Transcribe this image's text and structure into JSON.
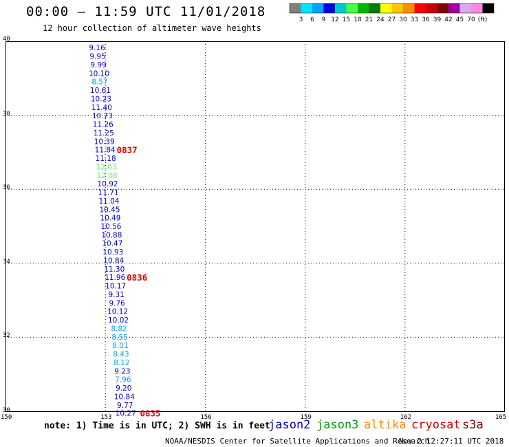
{
  "header": {
    "title": "00:00 – 11:59 UTC 11/01/2018",
    "subtitle": "12 hour collection of altimeter wave heights"
  },
  "colorbar": {
    "colors": [
      "#808080",
      "#00e5ff",
      "#00a0ff",
      "#0000e0",
      "#00c8c8",
      "#44ff44",
      "#00b800",
      "#007a00",
      "#ffff00",
      "#ffc400",
      "#ff8c00",
      "#ff0000",
      "#c80000",
      "#800000",
      "#a000a0",
      "#d8a8f0",
      "#ff88e0",
      "#000000"
    ],
    "labels": [
      "3",
      "6",
      "9",
      "12",
      "15",
      "18",
      "21",
      "24",
      "27",
      "30",
      "33",
      "36",
      "39",
      "42",
      "45",
      "70",
      "(ft)"
    ]
  },
  "map": {
    "x_axis": {
      "ticks": [
        150,
        153,
        156,
        159,
        162,
        165
      ],
      "labels": [
        "150",
        "153",
        "156",
        "159",
        "162",
        "165"
      ]
    },
    "y_axis": {
      "ticks": [
        30,
        32,
        34,
        36,
        38,
        40
      ],
      "labels": [
        "30",
        "32",
        "34",
        "36",
        "38",
        "40"
      ]
    },
    "grid": true,
    "palette": {
      "jason2": "#0000cc",
      "s3a_cyan": "#00aadd",
      "jason3_light": "#66ee66",
      "time_red": "#ee0000"
    }
  },
  "observations": [
    {
      "lon": 152.75,
      "lat": 39.83,
      "v": "9.16",
      "c": "#0000cc"
    },
    {
      "lon": 152.77,
      "lat": 39.6,
      "v": "9.95",
      "c": "#0000cc"
    },
    {
      "lon": 152.79,
      "lat": 39.37,
      "v": "9.99",
      "c": "#0000cc"
    },
    {
      "lon": 152.81,
      "lat": 39.14,
      "v": "10.10",
      "c": "#0000cc"
    },
    {
      "lon": 152.83,
      "lat": 38.91,
      "v": "8.57",
      "c": "#00aadd"
    },
    {
      "lon": 152.85,
      "lat": 38.68,
      "v": "10.61",
      "c": "#0000cc"
    },
    {
      "lon": 152.87,
      "lat": 38.45,
      "v": "10.23",
      "c": "#0000cc"
    },
    {
      "lon": 152.89,
      "lat": 38.22,
      "v": "11.40",
      "c": "#0000cc"
    },
    {
      "lon": 152.91,
      "lat": 37.99,
      "v": "10.73",
      "c": "#0000cc"
    },
    {
      "lon": 152.93,
      "lat": 37.76,
      "v": "11.26",
      "c": "#0000cc"
    },
    {
      "lon": 152.95,
      "lat": 37.53,
      "v": "11.25",
      "c": "#0000cc"
    },
    {
      "lon": 152.97,
      "lat": 37.3,
      "v": "10.39",
      "c": "#0000cc"
    },
    {
      "lon": 152.99,
      "lat": 37.07,
      "v": "11.84",
      "c": "#0000cc"
    },
    {
      "lon": 153.01,
      "lat": 36.84,
      "v": "11.18",
      "c": "#0000cc"
    },
    {
      "lon": 153.03,
      "lat": 36.61,
      "v": "12.03",
      "c": "#66ee66"
    },
    {
      "lon": 153.05,
      "lat": 36.38,
      "v": "12.08",
      "c": "#66ee66"
    },
    {
      "lon": 153.07,
      "lat": 36.15,
      "v": "10.92",
      "c": "#0000cc"
    },
    {
      "lon": 153.09,
      "lat": 35.92,
      "v": "11.71",
      "c": "#0000cc"
    },
    {
      "lon": 153.11,
      "lat": 35.69,
      "v": "11.04",
      "c": "#0000cc"
    },
    {
      "lon": 153.13,
      "lat": 35.46,
      "v": "10.45",
      "c": "#0000cc"
    },
    {
      "lon": 153.15,
      "lat": 35.23,
      "v": "10.49",
      "c": "#0000cc"
    },
    {
      "lon": 153.17,
      "lat": 35.0,
      "v": "10.56",
      "c": "#0000cc"
    },
    {
      "lon": 153.19,
      "lat": 34.77,
      "v": "10.88",
      "c": "#0000cc"
    },
    {
      "lon": 153.21,
      "lat": 34.54,
      "v": "10.47",
      "c": "#0000cc"
    },
    {
      "lon": 153.23,
      "lat": 34.31,
      "v": "10.93",
      "c": "#0000cc"
    },
    {
      "lon": 153.25,
      "lat": 34.08,
      "v": "10.84",
      "c": "#0000cc"
    },
    {
      "lon": 153.27,
      "lat": 33.85,
      "v": "11.30",
      "c": "#0000cc"
    },
    {
      "lon": 153.29,
      "lat": 33.62,
      "v": "11.96",
      "c": "#0000cc"
    },
    {
      "lon": 153.31,
      "lat": 33.39,
      "v": "10.17",
      "c": "#0000cc"
    },
    {
      "lon": 153.33,
      "lat": 33.16,
      "v": "9.31",
      "c": "#0000cc"
    },
    {
      "lon": 153.35,
      "lat": 32.93,
      "v": "9.76",
      "c": "#0000cc"
    },
    {
      "lon": 153.37,
      "lat": 32.7,
      "v": "10.12",
      "c": "#0000cc"
    },
    {
      "lon": 153.39,
      "lat": 32.47,
      "v": "10.02",
      "c": "#0000cc"
    },
    {
      "lon": 153.41,
      "lat": 32.24,
      "v": "8.82",
      "c": "#00aadd"
    },
    {
      "lon": 153.43,
      "lat": 32.01,
      "v": "8.55",
      "c": "#00aadd"
    },
    {
      "lon": 153.45,
      "lat": 31.78,
      "v": "8.01",
      "c": "#00aadd"
    },
    {
      "lon": 153.47,
      "lat": 31.55,
      "v": "8.43",
      "c": "#00aadd"
    },
    {
      "lon": 153.49,
      "lat": 31.32,
      "v": "8.12",
      "c": "#00aadd"
    },
    {
      "lon": 153.51,
      "lat": 31.09,
      "v": "9.23",
      "c": "#0000cc"
    },
    {
      "lon": 153.53,
      "lat": 30.86,
      "v": "7.96",
      "c": "#00aadd"
    },
    {
      "lon": 153.55,
      "lat": 30.63,
      "v": "9.20",
      "c": "#0000cc"
    },
    {
      "lon": 153.57,
      "lat": 30.4,
      "v": "10.84",
      "c": "#0000cc"
    },
    {
      "lon": 153.59,
      "lat": 30.17,
      "v": "9.77",
      "c": "#0000cc"
    },
    {
      "lon": 153.61,
      "lat": 29.95,
      "v": "10.27",
      "c": "#0000cc"
    }
  ],
  "time_labels": [
    {
      "lon": 153.65,
      "lat": 37.07,
      "v": "0837"
    },
    {
      "lon": 153.95,
      "lat": 33.62,
      "v": "0836"
    },
    {
      "lon": 154.35,
      "lat": 29.95,
      "v": "0835"
    }
  ],
  "note": "note: 1) Time is in UTC; 2) SWH is in feet",
  "legend": [
    {
      "name": "jason2",
      "color": "#0000cc"
    },
    {
      "name": "jason3",
      "color": "#00a000"
    },
    {
      "name": "altika",
      "color": "#ff8c00"
    },
    {
      "name": "cryosat",
      "color": "#cc0000"
    },
    {
      "name": "s3a",
      "color": "#800000"
    }
  ],
  "footer": {
    "credit": "NOAA/NESDIS Center for Satellite Applications and Research",
    "timestamp": "Nov  2 12:27:11 UTC 2018"
  }
}
